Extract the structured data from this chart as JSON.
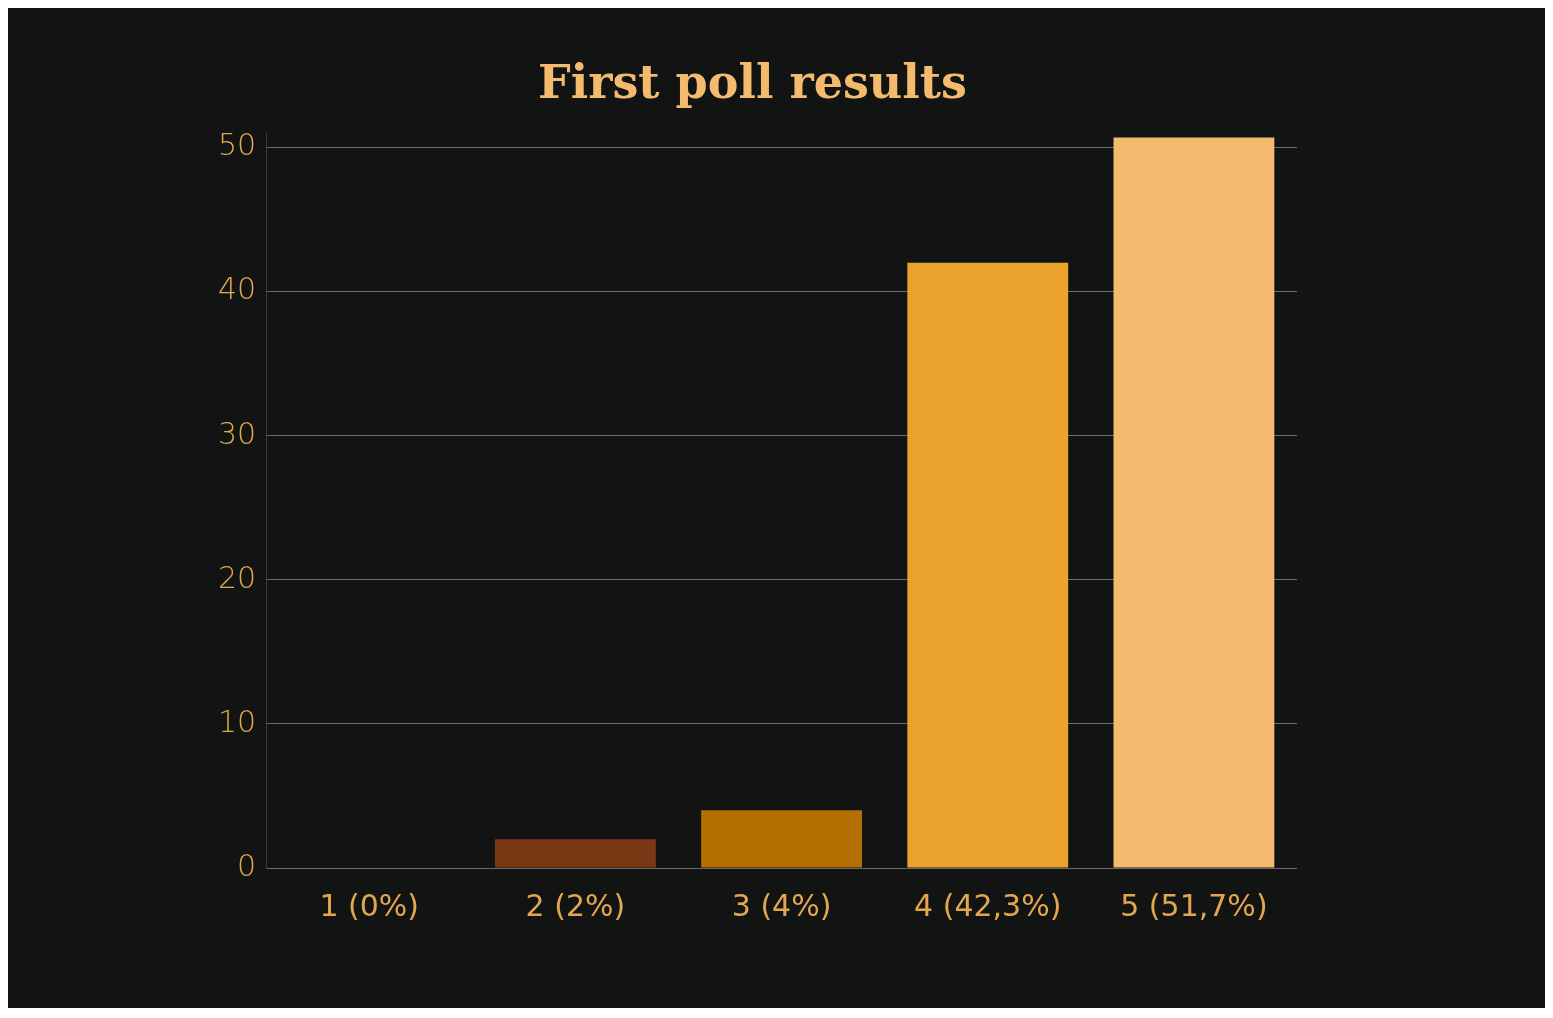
{
  "chart_data": {
    "type": "bar",
    "title": "First poll results",
    "categories": [
      "1 (0%)",
      "2 (2%)",
      "3 (4%)",
      "4 (42,3%)",
      "5 (51,7%)"
    ],
    "values": [
      0,
      2,
      4,
      42,
      50.7
    ],
    "colors": [
      "#7b3815",
      "#7b3815",
      "#b36f00",
      "#eba32d",
      "#f4bb6e"
    ],
    "ylim": [
      0,
      51
    ],
    "yticks": [
      0,
      10,
      20,
      30,
      40,
      50
    ],
    "grid": "y",
    "legend": false
  }
}
